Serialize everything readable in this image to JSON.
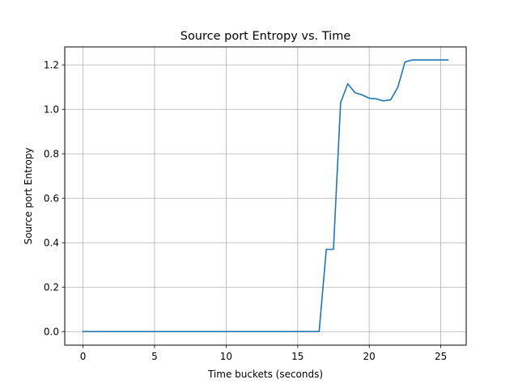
{
  "chart_data": {
    "type": "line",
    "title": "Source port Entropy vs. Time",
    "xlabel": "Time buckets (seconds)",
    "ylabel": "Source port Entropy",
    "xlim": [
      -1.275,
      26.775
    ],
    "ylim": [
      -0.061,
      1.281
    ],
    "xticks": [
      0,
      5,
      10,
      15,
      20,
      25
    ],
    "yticks": [
      0.0,
      0.2,
      0.4,
      0.6,
      0.8,
      1.0,
      1.2
    ],
    "grid": true,
    "legend": "none",
    "series": [
      {
        "color": "#1f77b4",
        "x": [
          0,
          0.5,
          1,
          1.5,
          2,
          2.5,
          3,
          3.5,
          4,
          4.5,
          5,
          5.5,
          6,
          6.5,
          7,
          7.5,
          8,
          8.5,
          9,
          9.5,
          10,
          10.5,
          11,
          11.5,
          12,
          12.5,
          13,
          13.5,
          14,
          14.5,
          15,
          15.5,
          16,
          16.5,
          17,
          17.5,
          18,
          18.5,
          19,
          19.5,
          20,
          20.5,
          21,
          21.5,
          22,
          22.5,
          23,
          23.5,
          24,
          24.5,
          25,
          25.5
        ],
        "y": [
          0,
          0,
          0,
          0,
          0,
          0,
          0,
          0,
          0,
          0,
          0,
          0,
          0,
          0,
          0,
          0,
          0,
          0,
          0,
          0,
          0,
          0,
          0,
          0,
          0,
          0,
          0,
          0,
          0,
          0,
          0,
          0,
          0,
          0,
          0.37,
          0.37,
          1.03,
          1.115,
          1.075,
          1.065,
          1.05,
          1.047,
          1.038,
          1.043,
          1.1,
          1.213,
          1.222,
          1.222,
          1.222,
          1.222,
          1.222,
          1.222
        ]
      }
    ]
  }
}
